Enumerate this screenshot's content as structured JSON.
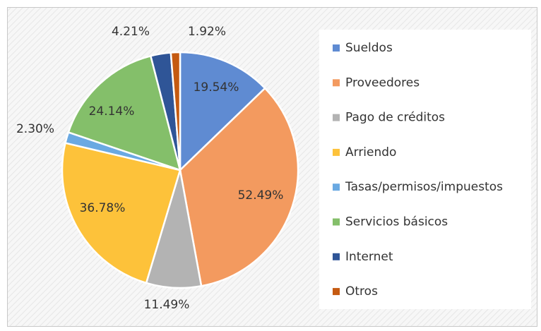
{
  "chart_data": {
    "type": "pie",
    "categories": [
      "Sueldos",
      "Proveedores",
      "Pago de créditos",
      "Arriendo",
      "Tasas/permisos/impuestos",
      "Servicios básicos",
      "Internet",
      "Otros"
    ],
    "values": [
      19.54,
      52.49,
      11.49,
      36.78,
      2.3,
      24.14,
      4.21,
      1.92
    ],
    "value_labels": [
      "19.54%",
      "52.49%",
      "11.49%",
      "36.78%",
      "2.30%",
      "24.14%",
      "4.21%",
      "1.92%"
    ],
    "colors": [
      "#5f8bd2",
      "#f39a5f",
      "#b3b3b3",
      "#fdc23a",
      "#6aa9e2",
      "#84bf6a",
      "#2f5597",
      "#c55a11"
    ],
    "legend": "right"
  }
}
